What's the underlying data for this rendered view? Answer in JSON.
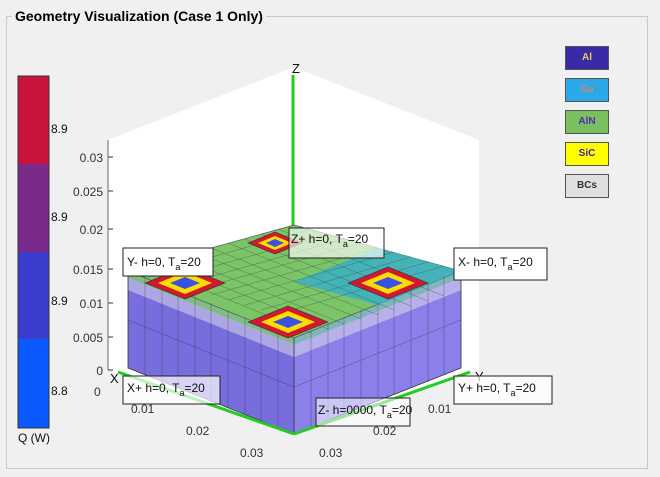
{
  "panel": {
    "title": "Geometry Visualization (Case 1 Only)"
  },
  "colorbar": {
    "label": "Q (W)",
    "ticks": [
      "8.9",
      "8.9",
      "8.9",
      "8.8"
    ],
    "colors": [
      "#c8143c",
      "#7a2a8a",
      "#3c3ccc",
      "#0a5aff"
    ]
  },
  "axes": {
    "z_label": "Z",
    "x_label": "X",
    "y_label": "Y",
    "z_ticks": [
      "0",
      "0.005",
      "0.01",
      "0.015",
      "0.02",
      "0.025",
      "0.03"
    ],
    "x_ticks": [
      "0",
      "0.01",
      "0.02",
      "0.03"
    ],
    "y_ticks": [
      "0.01",
      "0.02",
      "0.03"
    ]
  },
  "annotations": {
    "z_plus": "Z+ h=0, T",
    "y_minus": "Y- h=0, T",
    "x_minus": "X- h=0, T",
    "x_plus": "X+ h=0, T",
    "y_plus": "Y+ h=0, T",
    "z_minus": "Z- h=0000, T",
    "sub": "a",
    "val": "=20"
  },
  "legend": {
    "items": [
      {
        "label": "Al",
        "bg": "#3a2aa8",
        "fg": "#e0d060"
      },
      {
        "label": "Cu",
        "bg": "#2aa8e8",
        "fg": "#e08060"
      },
      {
        "label": "AlN",
        "bg": "#78c060",
        "fg": "#5a2ab0"
      },
      {
        "label": "SiC",
        "bg": "#ffff00",
        "fg": "#4020a0"
      },
      {
        "label": "BCs",
        "bg": "#e0e0e0",
        "fg": "#333333"
      }
    ]
  }
}
